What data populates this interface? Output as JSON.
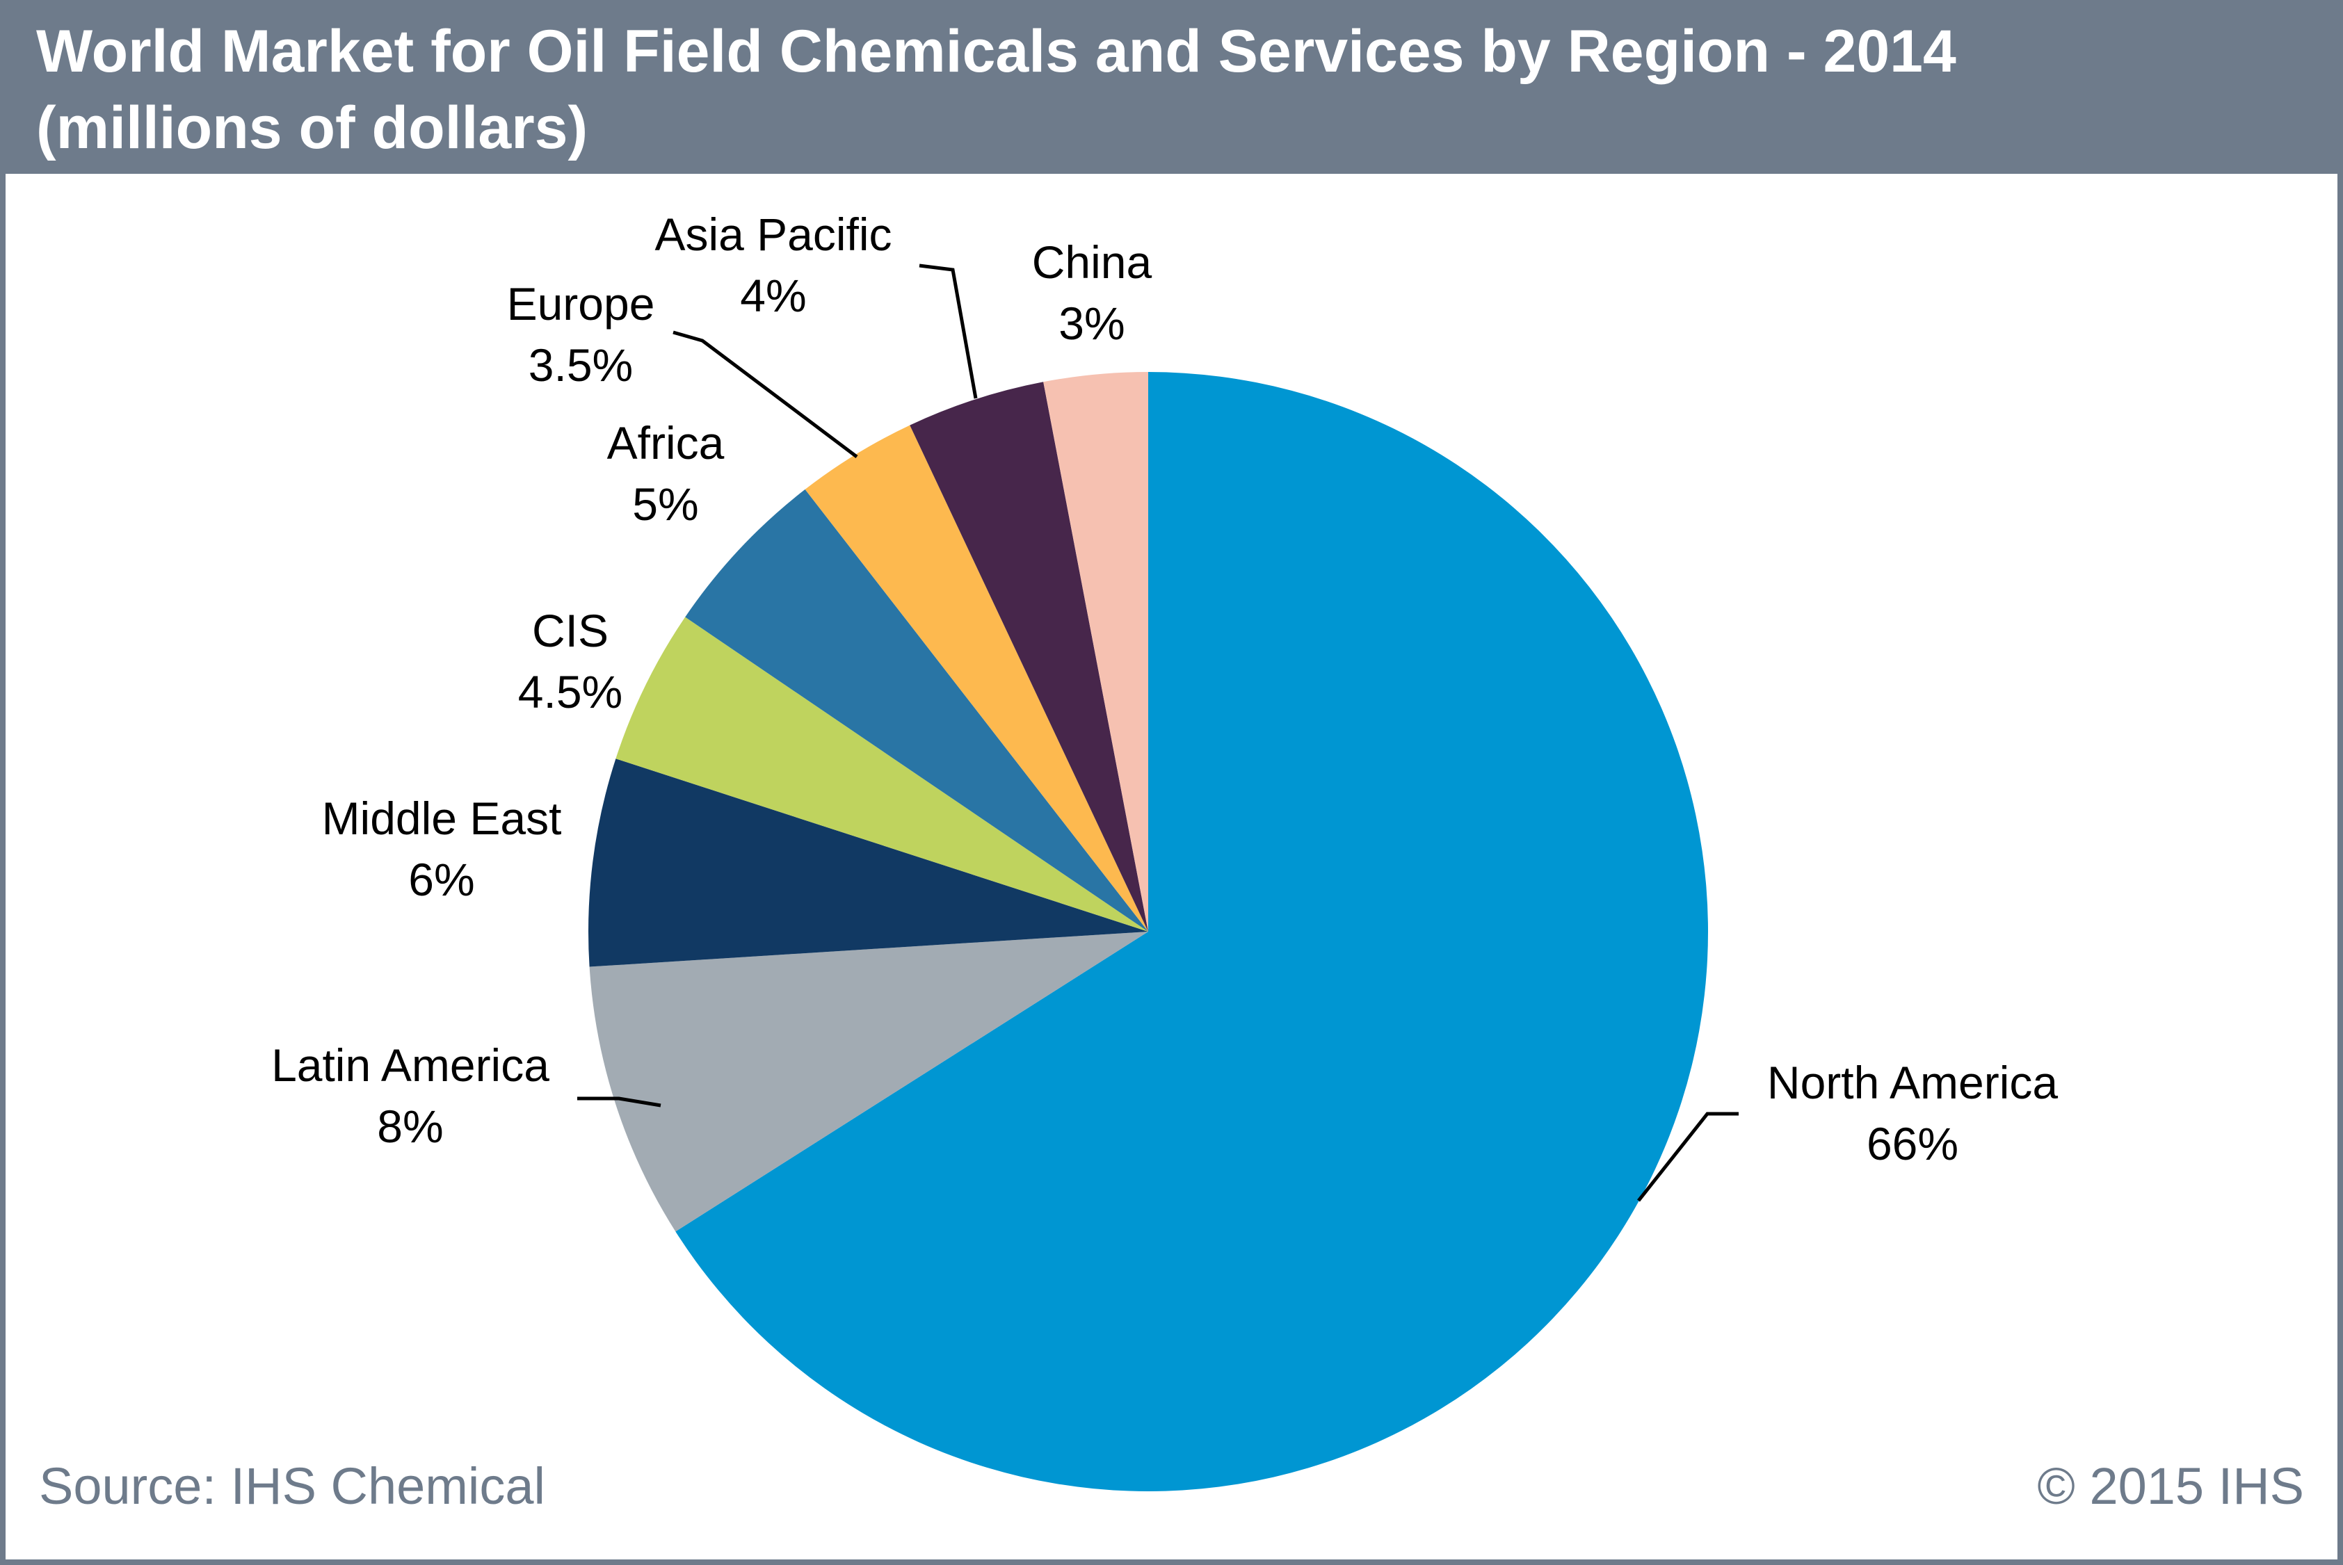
{
  "title": {
    "line1": "World Market for Oil Field Chemicals and Services by Region - 2014",
    "line2": "(millions of dollars)"
  },
  "footer": {
    "source": "Source: IHS Chemical",
    "copyright": "© 2015 IHS"
  },
  "chart_data": {
    "type": "pie",
    "title": "World Market for Oil Field Chemicals and Services by Region - 2014 (millions of dollars)",
    "unit": "%",
    "start": "12 o'clock, clockwise",
    "slices": [
      {
        "name": "North America",
        "value": 66,
        "label": "66%",
        "color": "#0096d2"
      },
      {
        "name": "Latin America",
        "value": 8,
        "label": "8%",
        "color": "#a2abb3"
      },
      {
        "name": "Middle East",
        "value": 6,
        "label": "6%",
        "color": "#113963"
      },
      {
        "name": "CIS",
        "value": 4.5,
        "label": "4.5%",
        "color": "#bfd35e"
      },
      {
        "name": "Africa",
        "value": 5,
        "label": "5%",
        "color": "#2975a5"
      },
      {
        "name": "Europe",
        "value": 3.5,
        "label": "3.5%",
        "color": "#fdb94f"
      },
      {
        "name": "Asia Pacific",
        "value": 4,
        "label": "4%",
        "color": "#47264b"
      },
      {
        "name": "China",
        "value": 3,
        "label": "3%",
        "color": "#f6c1b1"
      }
    ]
  }
}
